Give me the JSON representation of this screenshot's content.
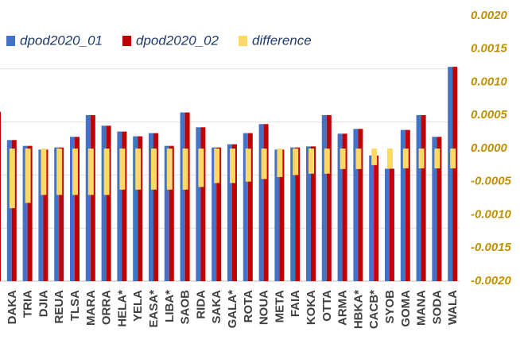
{
  "chart_data": {
    "type": "bar",
    "categories": [
      null,
      "DAKA",
      "TRIA",
      "DJIA",
      "REUA",
      "TLSA",
      "MARA",
      "ORRA",
      "HELA*",
      "YELA",
      "EASA*",
      "LIBA*",
      "SAOB",
      "RIDA",
      "SAKA",
      "GALA*",
      "ROTA",
      "NOUA",
      "META",
      "FAIA",
      "KOKA",
      "OTTA",
      "ARMA",
      "HBKA*",
      "CACB*",
      "SYOB",
      "GOMA",
      "MANA",
      "SODA",
      "WALA"
    ],
    "series": [
      {
        "name": "dpod2020_01",
        "color": "#4472c4",
        "values": [
          3.19,
          2.66,
          2.55,
          2.48,
          2.52,
          2.72,
          3.13,
          2.93,
          2.82,
          2.73,
          2.79,
          2.55,
          3.18,
          2.9,
          2.52,
          2.58,
          2.79,
          2.96,
          2.48,
          2.52,
          2.54,
          3.13,
          2.78,
          2.87,
          2.37,
          2.12,
          2.85,
          3.13,
          2.72,
          4.04
        ]
      },
      {
        "name": "dpod2020_02",
        "color": "#c00000",
        "values": [
          3.19,
          2.66,
          2.55,
          2.48,
          2.52,
          2.72,
          3.13,
          2.93,
          2.82,
          2.73,
          2.79,
          2.55,
          3.18,
          2.9,
          2.52,
          2.58,
          2.79,
          2.96,
          2.48,
          2.52,
          2.54,
          3.13,
          2.78,
          2.87,
          2.37,
          2.12,
          2.85,
          3.13,
          2.72,
          4.04
        ]
      },
      {
        "name": "difference",
        "color": "#ffd966",
        "axis": "y2",
        "values": [
          null,
          -0.0009,
          -0.00082,
          -0.0007,
          -0.0007,
          -0.0007,
          -0.0007,
          -0.0007,
          -0.00062,
          -0.00062,
          -0.00062,
          -0.00062,
          -0.00062,
          -0.00058,
          -0.00052,
          -0.00052,
          -0.0005,
          -0.00046,
          -0.00043,
          -0.0004,
          -0.00038,
          -0.00038,
          -0.00031,
          -0.00031,
          -0.00025,
          -0.0003,
          -0.0003,
          -0.0003,
          -0.0003,
          -0.0003
        ]
      }
    ],
    "ylim": [
      0,
      5
    ],
    "yticks": [
      0,
      1,
      2,
      3,
      4
    ],
    "grid": true,
    "y2lim": [
      -0.002,
      0.002
    ],
    "y2ticks": [
      {
        "value": 0.002,
        "label": "0.0020"
      },
      {
        "value": 0.0015,
        "label": "0.0015"
      },
      {
        "value": 0.001,
        "label": "0.0010"
      },
      {
        "value": 0.0005,
        "label": "0.0005"
      },
      {
        "value": 0,
        "label": "0.0000"
      },
      {
        "value": -0.0005,
        "label": "-0.0005"
      },
      {
        "value": -0.001,
        "label": "-0.0010"
      },
      {
        "value": -0.0015,
        "label": "-0.0015"
      },
      {
        "value": -0.002,
        "label": "-0.0020"
      }
    ],
    "legend": "top"
  }
}
